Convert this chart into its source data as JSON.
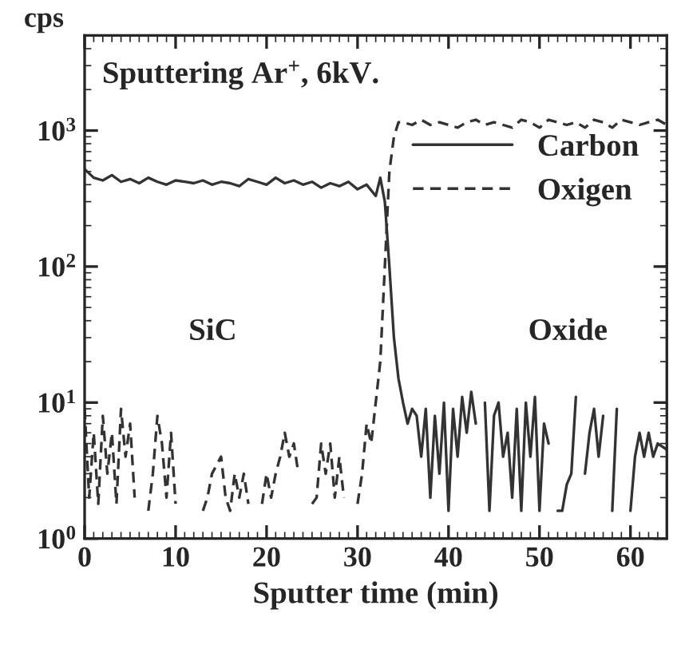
{
  "chart_data": {
    "type": "line",
    "xlabel": "Sputter time (min)",
    "ylabel": "cps",
    "log": true,
    "xlim": [
      0,
      64
    ],
    "xticks": [
      0,
      10,
      20,
      30,
      40,
      50,
      60
    ],
    "ylim": [
      1,
      5000
    ],
    "yticks": [
      {
        "value": 1,
        "label": "10$^{0}$"
      },
      {
        "value": 10,
        "label": "10$^{1}$"
      },
      {
        "value": 100,
        "label": "10$^{2}$"
      },
      {
        "value": 1000,
        "label": "10$^{3}$"
      }
    ],
    "legend": "top right",
    "grid": false,
    "annotations": [
      {
        "text": "Sputtering Ar$^{+}$, 6kV."
      },
      "SiC",
      "Oxide"
    ],
    "series": [
      {
        "name": "Carbon",
        "color": "#333333",
        "line_style": "solid",
        "x": [
          0,
          1,
          2,
          3,
          4,
          5,
          6,
          7,
          8,
          9,
          10,
          11,
          12,
          13,
          14,
          15,
          16,
          17,
          18,
          19,
          20,
          21,
          22,
          23,
          24,
          25,
          26,
          27,
          28,
          29,
          30,
          31,
          32,
          32.5,
          33,
          33.5,
          34,
          34.5,
          35,
          35.5,
          36,
          36.5,
          37,
          37.5,
          38,
          38.5,
          39,
          39.5,
          40,
          40.5,
          41,
          41.5,
          42,
          42.5,
          43,
          43.5,
          44,
          44.5,
          45,
          45.5,
          46,
          46.5,
          47,
          47.5,
          48,
          48.5,
          49,
          49.5,
          50,
          50.5,
          51,
          51.5,
          52,
          52.5,
          53,
          53.5,
          54,
          54.5,
          55,
          55.5,
          56,
          56.5,
          57,
          57.5,
          58,
          58.5,
          59,
          60,
          60.5,
          61,
          61.5,
          62,
          62.5,
          63,
          64
        ],
        "values": [
          520,
          450,
          430,
          470,
          420,
          440,
          410,
          450,
          420,
          400,
          430,
          420,
          410,
          430,
          400,
          420,
          410,
          390,
          440,
          420,
          400,
          450,
          410,
          430,
          400,
          420,
          380,
          410,
          390,
          420,
          370,
          400,
          330,
          450,
          300,
          100,
          30,
          15,
          10,
          7,
          9,
          8,
          4,
          9,
          2,
          8,
          3,
          10,
          1.6,
          9,
          4,
          11,
          6,
          12,
          7,
          null,
          10,
          1.6,
          8,
          10,
          4,
          6,
          2,
          9,
          1.6,
          10,
          4,
          11,
          1.6,
          7,
          5,
          null,
          1.6,
          1.6,
          2.5,
          3,
          11,
          null,
          3,
          6,
          9,
          4,
          8,
          null,
          1.6,
          9,
          null,
          1.6,
          4,
          6,
          4,
          6,
          4,
          5,
          4.5
        ]
      },
      {
        "name": "Oxigen",
        "color": "#333333",
        "line_style": "dashed",
        "x": [
          0,
          0.5,
          1,
          1.5,
          2,
          2.5,
          3,
          3.5,
          4,
          4.5,
          5,
          5.5,
          6,
          7,
          7.5,
          8,
          8.5,
          9,
          9.5,
          10,
          10.5,
          13,
          13.5,
          14,
          15,
          15.5,
          16,
          16.5,
          17,
          17.5,
          18,
          18.5,
          19.5,
          20,
          20.5,
          21,
          21.5,
          22,
          22.5,
          23,
          23.5,
          24,
          25,
          25.5,
          26,
          26.5,
          27,
          27.5,
          28,
          28.5,
          29,
          30,
          30.5,
          31,
          31.5,
          32,
          32.5,
          33,
          33.5,
          34,
          34.5,
          35,
          36,
          37,
          38,
          39,
          40,
          41,
          42,
          43,
          44,
          45,
          46,
          47,
          48,
          49,
          50,
          51,
          52,
          53,
          54,
          55,
          56,
          57,
          58,
          59,
          60,
          61,
          62,
          63,
          64
        ],
        "values": [
          9,
          2,
          6,
          1.8,
          8,
          3,
          6,
          1.8,
          9,
          4,
          7,
          2,
          null,
          1.6,
          3,
          8,
          5,
          2,
          6,
          1.8,
          null,
          1.6,
          2,
          3,
          4,
          2,
          1.6,
          3,
          2,
          3,
          1.8,
          null,
          1.8,
          3,
          2,
          3,
          4,
          6,
          4,
          5,
          3,
          null,
          1.8,
          2,
          5,
          3,
          5,
          2,
          4,
          2,
          null,
          1.8,
          3,
          7,
          5,
          10,
          20,
          100,
          500,
          900,
          1150,
          1150,
          1100,
          1200,
          1100,
          1150,
          1100,
          1050,
          1150,
          1200,
          1100,
          1150,
          1100,
          1050,
          1200,
          1150,
          1050,
          1200,
          1150,
          1100,
          1150,
          1050,
          1200,
          1150,
          1050,
          1200,
          1150,
          1100,
          1150,
          1200,
          1100
        ]
      }
    ]
  }
}
